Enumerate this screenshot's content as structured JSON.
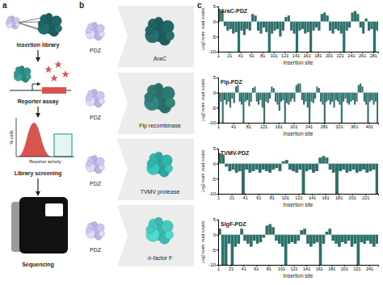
{
  "panel_labels": [
    "a",
    "b",
    "c"
  ],
  "workflow": {
    "steps": [
      "Insertion library",
      "Reporter assay",
      "Library screening",
      "Sequencing"
    ],
    "histogram_y_label": "% cells",
    "histogram_x_label": "Reporter activity"
  },
  "fusions": [
    {
      "insert": "PDZ",
      "target": "AraC"
    },
    {
      "insert": "PDZ",
      "target": "Flp recombinase"
    },
    {
      "insert": "PDZ",
      "target": "TVMV protease"
    },
    {
      "insert": "PDZ",
      "target": "σ-factor F"
    }
  ],
  "chart_data": [
    {
      "type": "bar",
      "title": "AraC-PDZ",
      "x_label": "Insertion site",
      "y_label": "Log2 norm. read counts",
      "color": "#2c6f6b",
      "xlim": [
        1,
        290
      ],
      "xticks": [
        1,
        21,
        41,
        61,
        81,
        101,
        121,
        141,
        161,
        181,
        201,
        221,
        241,
        261,
        281
      ],
      "ylim": [
        -10,
        5
      ],
      "yticks": [
        -10,
        -5,
        0,
        5
      ],
      "x": [
        1,
        6,
        11,
        16,
        21,
        26,
        31,
        36,
        41,
        46,
        51,
        56,
        61,
        66,
        71,
        76,
        81,
        86,
        91,
        96,
        101,
        106,
        111,
        116,
        121,
        126,
        131,
        136,
        141,
        146,
        151,
        156,
        161,
        166,
        171,
        176,
        181,
        186,
        191,
        196,
        201,
        206,
        211,
        216,
        221,
        226,
        231,
        236,
        241,
        246,
        251,
        256,
        261,
        266,
        271,
        276,
        281,
        286
      ],
      "values": [
        4.2,
        3.5,
        -1.5,
        -3,
        -2.5,
        -4,
        -3.5,
        -10,
        -3,
        -4.5,
        -2.5,
        -3,
        2.5,
        2,
        -3,
        -4,
        -2,
        -3.5,
        -10,
        -4,
        -3,
        -2.5,
        -5,
        -3,
        1.5,
        2,
        -3,
        -4,
        -10,
        -3,
        -2.5,
        -4,
        -3.5,
        -10,
        -3,
        -2,
        -3,
        2.5,
        3,
        2,
        -3,
        -4,
        -2.5,
        -3,
        -4,
        -10,
        -3,
        -2,
        3,
        3.5,
        2.5,
        -2,
        -4,
        1,
        -3,
        -2.5,
        -10,
        -3
      ]
    },
    {
      "type": "bar",
      "title": "Flp-PDZ",
      "x_label": "Insertion site",
      "y_label": "Log2 norm. read counts",
      "color": "#2c6f6b",
      "xlim": [
        1,
        425
      ],
      "xticks": [
        1,
        41,
        81,
        121,
        161,
        201,
        241,
        281,
        321,
        361,
        401
      ],
      "ylim": [
        -10,
        5
      ],
      "yticks": [
        -10,
        -5,
        0,
        5
      ],
      "x": [
        1,
        6,
        11,
        16,
        21,
        26,
        31,
        36,
        41,
        46,
        51,
        56,
        61,
        66,
        71,
        76,
        81,
        86,
        91,
        96,
        101,
        106,
        111,
        116,
        121,
        126,
        131,
        136,
        141,
        146,
        151,
        156,
        161,
        166,
        171,
        176,
        181,
        186,
        191,
        196,
        201,
        206,
        211,
        216,
        221,
        226,
        231,
        236,
        241,
        246,
        251,
        256,
        261,
        266,
        271,
        276,
        281,
        286,
        291,
        296,
        301,
        306,
        311,
        316,
        321,
        326,
        331,
        336,
        341,
        346,
        351,
        356,
        361,
        366,
        371,
        376,
        381,
        386,
        391,
        396,
        401,
        406,
        411,
        416,
        421
      ],
      "values": [
        -10,
        -3,
        -10,
        -2.5,
        -4,
        -3,
        -5,
        -2,
        -3.5,
        2,
        2.5,
        -3,
        -4,
        -10,
        -3,
        -2.5,
        -4.5,
        -3,
        1.5,
        2,
        -3,
        -4,
        -2.5,
        -5,
        -10,
        -3,
        -3.5,
        -2,
        2,
        1.5,
        -3,
        -4,
        -6,
        -3,
        -2.5,
        -10,
        -3.5,
        -4,
        -3,
        -2,
        -3,
        2.5,
        3,
        3,
        -2.5,
        -4,
        -3,
        -5,
        -10,
        -3,
        -3.5,
        -2,
        2,
        1.5,
        -3,
        -4,
        -10,
        -3,
        -2.5,
        -4,
        -3,
        -5,
        -2.5,
        -3,
        -4,
        -10,
        -3,
        -2,
        -3.5,
        -4,
        -3,
        -2.5,
        -4,
        -3,
        2.5,
        3,
        2,
        -3,
        -4,
        -10,
        -3,
        -2.5,
        -4,
        -3,
        -10
      ]
    },
    {
      "type": "bar",
      "title": "TVMV-PDZ",
      "x_label": "Insertion site",
      "y_label": "Log2 norm. read counts",
      "color": "#2c6f6b",
      "xlim": [
        1,
        240
      ],
      "xticks": [
        1,
        21,
        41,
        61,
        81,
        101,
        121,
        141,
        161,
        181,
        201,
        221
      ],
      "ylim": [
        -10,
        5
      ],
      "yticks": [
        -10,
        -5,
        0,
        5
      ],
      "x": [
        1,
        6,
        11,
        16,
        21,
        26,
        31,
        36,
        41,
        46,
        51,
        56,
        61,
        66,
        71,
        76,
        81,
        86,
        91,
        96,
        101,
        106,
        111,
        116,
        121,
        126,
        131,
        136,
        141,
        146,
        151,
        156,
        161,
        166,
        171,
        176,
        181,
        186,
        191,
        196,
        201,
        206,
        211,
        216,
        221,
        226,
        231,
        236
      ],
      "values": [
        3.5,
        3,
        -1,
        -2.5,
        -2,
        -3,
        -2.5,
        -10,
        -2,
        -3,
        -2.5,
        -2,
        -3,
        -2,
        -2.5,
        -3,
        -2,
        -1.5,
        -2.5,
        0.8,
        1.2,
        -2,
        -2.5,
        -3,
        -2,
        -10,
        -2.5,
        -2,
        -3,
        -2.5,
        2,
        2.5,
        2,
        -2,
        -3,
        -10,
        -2.5,
        -2,
        -3,
        -2.5,
        -2,
        -3,
        -2.5,
        -2,
        -3,
        -2.5,
        -2,
        -10
      ]
    },
    {
      "type": "bar",
      "title": "SigF-PDZ",
      "x_label": "Insertion site",
      "y_label": "Log2 norm. read counts",
      "color": "#2c6f6b",
      "xlim": [
        1,
        255
      ],
      "xticks": [
        1,
        21,
        41,
        61,
        81,
        101,
        121,
        141,
        161,
        181,
        201,
        221,
        241
      ],
      "ylim": [
        -10,
        5
      ],
      "yticks": [
        -10,
        -5,
        0,
        5
      ],
      "x": [
        1,
        6,
        11,
        16,
        21,
        26,
        31,
        36,
        41,
        46,
        51,
        56,
        61,
        66,
        71,
        76,
        81,
        86,
        91,
        96,
        101,
        106,
        111,
        116,
        121,
        126,
        131,
        136,
        141,
        146,
        151,
        156,
        161,
        166,
        171,
        176,
        181,
        186,
        191,
        196,
        201,
        206,
        211,
        216,
        221,
        226,
        231,
        236,
        241,
        246,
        251
      ],
      "values": [
        2,
        -10,
        -10,
        -3,
        -10,
        -4,
        -3,
        2,
        -2,
        -3,
        -4,
        -2,
        -3,
        -2.5,
        -1,
        3,
        3.5,
        2.5,
        -2,
        -3,
        -4,
        -10,
        -3,
        -2.5,
        -3,
        -2,
        1.5,
        2,
        -3,
        -4,
        -3,
        -2.5,
        -10,
        -3,
        1,
        2,
        -2,
        -3,
        -4,
        -2.5,
        -3,
        -2,
        -4,
        -3,
        -10,
        -2.5,
        -3,
        -2,
        -3,
        -4,
        -3
      ]
    }
  ]
}
